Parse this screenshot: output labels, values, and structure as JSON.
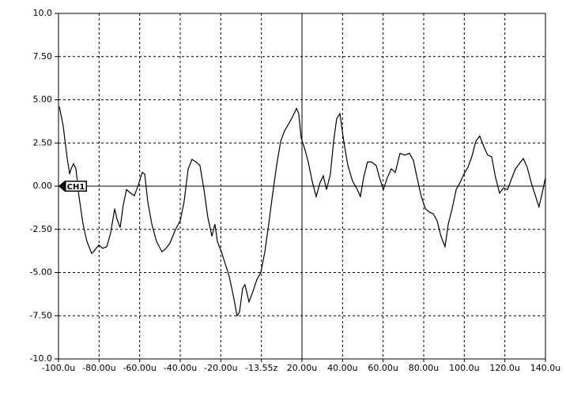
{
  "chart_data": {
    "type": "line",
    "channel_label": "CH1",
    "grid": true,
    "xlim": [
      -100,
      140
    ],
    "ylim": [
      -10,
      10
    ],
    "xticks": [
      {
        "value": -100,
        "label": "-100.0u"
      },
      {
        "value": -80,
        "label": "-80.00u"
      },
      {
        "value": -60,
        "label": "-60.00u"
      },
      {
        "value": -40,
        "label": "-40.00u"
      },
      {
        "value": -20,
        "label": "-20.00u"
      },
      {
        "value": 0,
        "label": "-13.55z"
      },
      {
        "value": 20,
        "label": "20.00u"
      },
      {
        "value": 40,
        "label": "40.00u"
      },
      {
        "value": 60,
        "label": "60.00u"
      },
      {
        "value": 80,
        "label": "80.00u"
      },
      {
        "value": 100,
        "label": "100.0u"
      },
      {
        "value": 120,
        "label": "120.0u"
      },
      {
        "value": 140,
        "label": "140.0u"
      }
    ],
    "yticks": [
      {
        "value": 10,
        "label": "10.0"
      },
      {
        "value": 7.5,
        "label": "7.50"
      },
      {
        "value": 5,
        "label": "5.00"
      },
      {
        "value": 2.5,
        "label": "2.50"
      },
      {
        "value": 0,
        "label": "0.00"
      },
      {
        "value": -2.5,
        "label": "-2.50"
      },
      {
        "value": -5,
        "label": "-5.00"
      },
      {
        "value": -7.5,
        "label": "-7.50"
      },
      {
        "value": -10,
        "label": "-10.0"
      }
    ],
    "series": [
      {
        "name": "CH1",
        "color": "#000000",
        "x": [
          -99.6,
          -97.7,
          -95.7,
          -94.5,
          -93.8,
          -92.6,
          -91.4,
          -89.9,
          -87.9,
          -86.0,
          -83.6,
          -82.1,
          -80.1,
          -78.2,
          -76.2,
          -74.3,
          -72.3,
          -71.2,
          -69.6,
          -68.1,
          -66.5,
          -64.5,
          -62.6,
          -60.7,
          -58.7,
          -57.5,
          -56.0,
          -54.0,
          -51.7,
          -49.0,
          -47.0,
          -45.1,
          -42.3,
          -40.0,
          -38.1,
          -36.1,
          -34.2,
          -32.2,
          -30.3,
          -28.3,
          -26.4,
          -24.4,
          -22.9,
          -21.7,
          -19.7,
          -17.8,
          -15.9,
          -13.9,
          -12.0,
          -10.8,
          -9.2,
          -8.1,
          -6.1,
          -4.2,
          -2.2,
          -0.3,
          1.7,
          3.6,
          5.6,
          7.5,
          9.5,
          11.4,
          13.4,
          15.3,
          17.3,
          18.4,
          19.6,
          21.5,
          23.1,
          25.0,
          27.0,
          28.9,
          30.5,
          32.1,
          34.0,
          35.6,
          37.1,
          38.7,
          40.6,
          42.6,
          44.9,
          47.3,
          48.8,
          50.4,
          52.3,
          54.3,
          56.6,
          58.2,
          60.1,
          62.1,
          64.0,
          66.0,
          68.3,
          70.6,
          73.0,
          74.9,
          76.9,
          78.8,
          80.8,
          82.7,
          84.7,
          86.6,
          88.5,
          90.5,
          92.1,
          94.0,
          96.0,
          97.9,
          99.8,
          101.8,
          103.7,
          105.7,
          107.6,
          109.6,
          111.5,
          113.5,
          115.4,
          117.4,
          119.3,
          121.3,
          123.2,
          125.2,
          127.1,
          129.1,
          131.0,
          133.0,
          134.9,
          136.8,
          138.4,
          140.0
        ],
        "values": [
          4.6,
          3.5,
          1.6,
          0.7,
          1.0,
          1.3,
          1.0,
          -0.6,
          -2.2,
          -3.2,
          -3.9,
          -3.7,
          -3.4,
          -3.6,
          -3.5,
          -2.7,
          -1.3,
          -1.9,
          -2.4,
          -1.1,
          -0.2,
          -0.4,
          -0.55,
          0.05,
          0.8,
          0.7,
          -0.9,
          -2.2,
          -3.2,
          -3.8,
          -3.6,
          -3.3,
          -2.5,
          -2.0,
          -0.9,
          1.0,
          1.55,
          1.4,
          1.2,
          -0.2,
          -1.8,
          -2.9,
          -2.2,
          -3.2,
          -3.8,
          -4.5,
          -5.2,
          -6.3,
          -7.5,
          -7.3,
          -5.9,
          -5.7,
          -6.7,
          -6.1,
          -5.4,
          -5.0,
          -3.8,
          -2.2,
          -0.4,
          1.2,
          2.6,
          3.2,
          3.6,
          4.0,
          4.5,
          4.2,
          2.8,
          2.1,
          1.4,
          0.3,
          -0.6,
          0.2,
          0.6,
          -0.2,
          0.7,
          2.6,
          3.9,
          4.2,
          2.6,
          1.2,
          0.3,
          -0.2,
          -0.6,
          0.5,
          1.4,
          1.4,
          1.2,
          0.5,
          -0.2,
          0.5,
          1.0,
          0.8,
          1.9,
          1.8,
          1.9,
          1.5,
          0.4,
          -0.6,
          -1.3,
          -1.5,
          -1.6,
          -2.0,
          -2.9,
          -3.5,
          -2.2,
          -1.3,
          -0.2,
          0.2,
          0.7,
          1.1,
          1.7,
          2.6,
          2.9,
          2.3,
          1.8,
          1.7,
          0.5,
          -0.4,
          -0.1,
          -0.2,
          0.4,
          1.0,
          1.3,
          1.6,
          1.1,
          0.2,
          -0.5,
          -1.2,
          -0.4,
          0.5
        ]
      }
    ]
  }
}
